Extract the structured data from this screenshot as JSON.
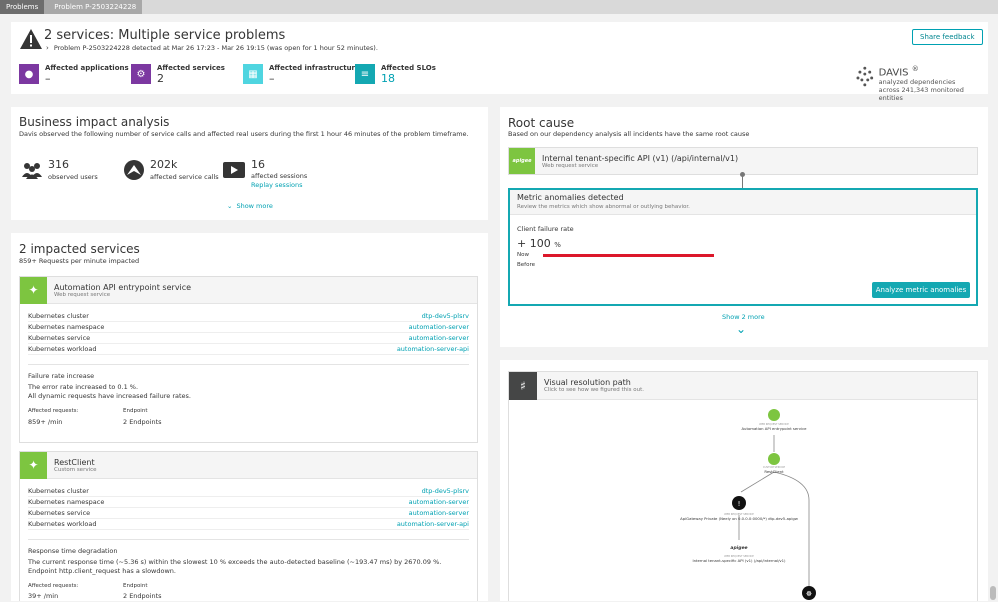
{
  "breadcrumb": [
    "Problems",
    "Problem P-2503224228"
  ],
  "header": {
    "title": "2 services: Multiple service problems",
    "detail": "Problem P-2503224228 detected at Mar 26 17:23 - Mar 26 19:15 (was open for 1 hour 52 minutes).",
    "share_label": "Share feedback",
    "stats": [
      {
        "label": "Affected applications",
        "value": "–",
        "color": "#7c38a1",
        "icon": "application-icon"
      },
      {
        "label": "Affected services",
        "value": "2",
        "color": "#7c38a1",
        "icon": "service-icon"
      },
      {
        "label": "Affected infrastructure",
        "value": "–",
        "color": "#4fd5e0",
        "icon": "infrastructure-icon"
      },
      {
        "label": "Affected SLOs",
        "value": "18",
        "color": "#14a8b2",
        "icon": "slo-icon"
      }
    ],
    "davis": {
      "name": "DAVIS",
      "mark": "®",
      "line1": "analyzed dependencies",
      "line2": "across 241,343 monitored entities"
    }
  },
  "business": {
    "title": "Business impact analysis",
    "desc": "Davis observed the following number of service calls and affected real users during the first 1 hour 46 minutes of the problem timeframe.",
    "users_value": "316",
    "users_label": "observed users",
    "calls_value": "202k",
    "calls_label": "affected service calls",
    "sessions_value": "16",
    "sessions_label": "affected sessions",
    "replay_label": "Replay sessions",
    "show_more": "Show more"
  },
  "impacted": {
    "title": "2 impacted services",
    "sub": "859+ Requests per minute impacted",
    "services": [
      {
        "name": "Automation API entrypoint service",
        "type": "Web request service",
        "props": [
          {
            "k": "Kubernetes cluster",
            "v": "dtp-dev5-plsrv"
          },
          {
            "k": "Kubernetes namespace",
            "v": "automation-server"
          },
          {
            "k": "Kubernetes service",
            "v": "automation-server"
          },
          {
            "k": "Kubernetes workload",
            "v": "automation-server-api"
          }
        ],
        "issue_title": "Failure rate increase",
        "issue_l1": "The error rate increased to 0.1 %.",
        "issue_l2": "All dynamic requests have increased failure rates.",
        "req_label": "Affected requests:",
        "req_value": "859+ /min",
        "ep_label": "Endpoint",
        "ep_value": "2 Endpoints"
      },
      {
        "name": "RestClient",
        "type": "Custom service",
        "props": [
          {
            "k": "Kubernetes cluster",
            "v": "dtp-dev5-plsrv"
          },
          {
            "k": "Kubernetes namespace",
            "v": "automation-server"
          },
          {
            "k": "Kubernetes service",
            "v": "automation-server"
          },
          {
            "k": "Kubernetes workload",
            "v": "automation-server-api"
          }
        ],
        "issue_title": "Response time degradation",
        "issue_l1": "The current response time (~5.36 s) within the slowest 10 % exceeds the auto-detected baseline (~193.47 ms) by 2670.09 %.",
        "issue_l2": "Endpoint http.client_request has a slowdown.",
        "req_label": "Affected requests:",
        "req_value": "39+ /min",
        "ep_label": "Endpoint",
        "ep_value": "2 Endpoints"
      }
    ]
  },
  "rootcause": {
    "title": "Root cause",
    "desc": "Based on our dependency analysis all incidents have the same root cause",
    "entity_name": "Internal tenant-specific API (v1) (/api/internal/v1)",
    "entity_type": "Web request service",
    "entity_logo": "apigee",
    "metric_title": "Metric anomalies detected",
    "metric_sub": "Review the metrics which show abnormal or outlying behavior.",
    "metric_name": "Client failure rate",
    "metric_value": "+ 100",
    "metric_unit": "%",
    "now_label": "Now",
    "before_label": "Before",
    "now_fill": 1.0,
    "analyze_label": "Analyze metric anomalies",
    "show_more": "Show 2 more"
  },
  "visual": {
    "title": "Visual resolution path",
    "sub": "Click to see how we figured this out.",
    "n1_type": "WEB REQUEST SERVICE",
    "n1_name": "Automation API entrypoint service",
    "n2_type": "CUSTOM SERVICE",
    "n2_name": "RestClient",
    "n3_type": "WEB REQUEST SERVICE",
    "n3_name": "ApiGateway Private (Neely on 0.0.0.0:0000/*) dtp-dev5-apigw",
    "n4_logo": "apigee",
    "n4_type": "WEB REQUEST SERVICE",
    "n4_name": "Internal tenant-specific API (v1) (/api/internal/v1)"
  },
  "colors": {
    "accent": "#00a1b2",
    "python": "#7dc540",
    "error": "#dc172a",
    "analyze_btn": "#008cdb"
  }
}
